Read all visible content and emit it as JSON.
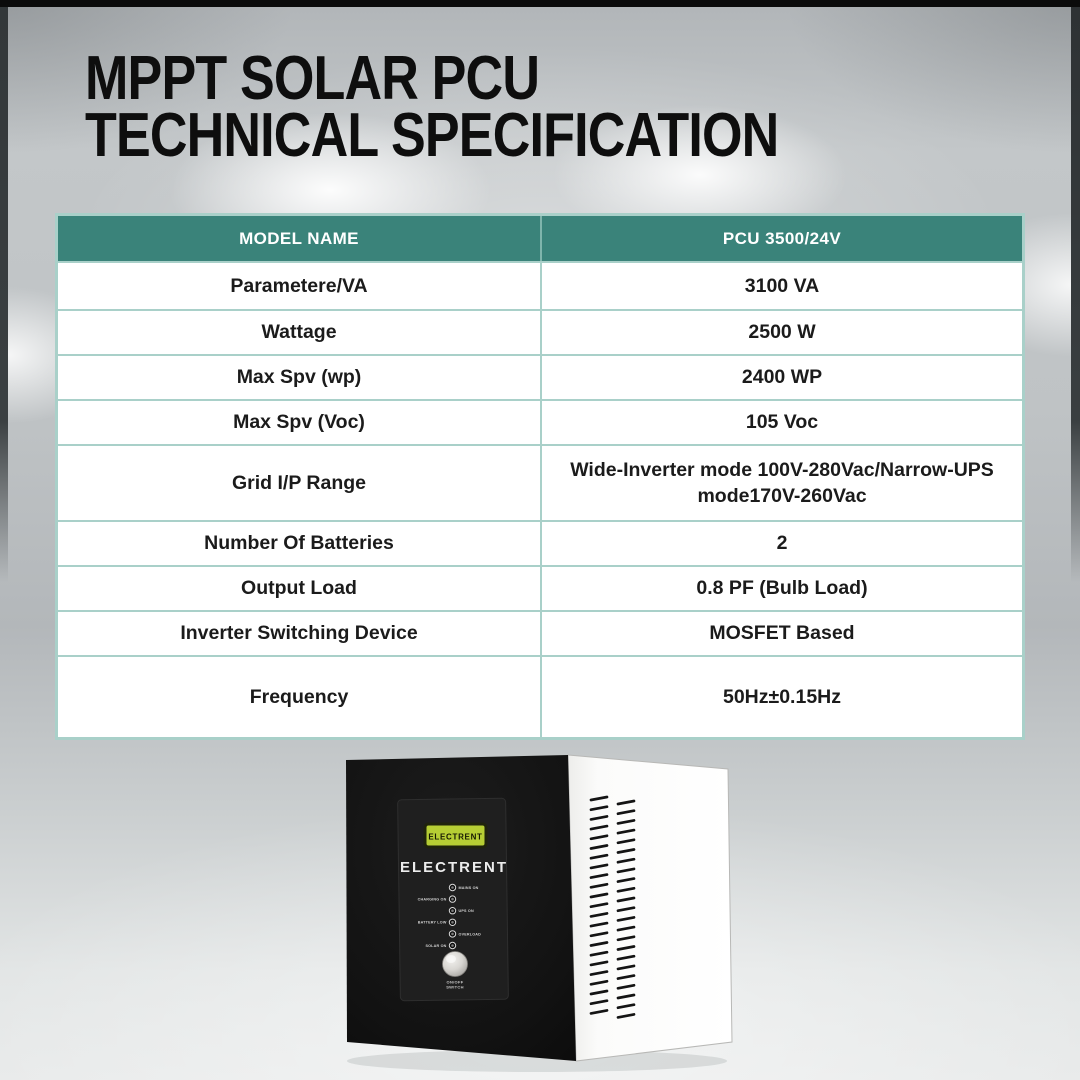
{
  "header": {
    "title_line1": "MPPT SOLAR PCU",
    "title_line2": "TECHNICAL SPECIFICATION"
  },
  "spec_table": {
    "columns": {
      "model": "MODEL NAME",
      "value": "PCU 3500/24V"
    },
    "rows": [
      {
        "label": "Parametere/VA",
        "value": "3100 VA"
      },
      {
        "label": "Wattage",
        "value": "2500 W"
      },
      {
        "label": "Max Spv (wp)",
        "value": "2400 WP"
      },
      {
        "label": "Max Spv (Voc)",
        "value": "105 Voc"
      },
      {
        "label": "Grid I/P Range",
        "value": "Wide-Inverter mode 100V-280Vac/Narrow-UPS mode170V-260Vac"
      },
      {
        "label": "Number Of Batteries",
        "value": "2"
      },
      {
        "label": "Output Load",
        "value": "0.8 PF (Bulb Load)"
      },
      {
        "label": "Inverter Switching Device",
        "value": "MOSFET Based"
      },
      {
        "label": "Frequency",
        "value": "50Hz±0.15Hz"
      }
    ]
  },
  "product": {
    "lcd_text": "ELECTRENT",
    "brand_text": "ELECTRENT",
    "indicators": [
      {
        "side": "right",
        "label": "MAINS ON"
      },
      {
        "side": "left",
        "label": "CHARGING ON"
      },
      {
        "side": "right",
        "label": "UPS ON"
      },
      {
        "side": "left",
        "label": "BATTERY LOW"
      },
      {
        "side": "right",
        "label": "OVERLOAD"
      },
      {
        "side": "left",
        "label": "SOLAR ON"
      }
    ],
    "knob_label_line1": "ON/OFF",
    "knob_label_line2": "SWITCH"
  },
  "colors": {
    "header_teal": "#3A837A",
    "table_border": "#A9D0C9",
    "lcd_green": "#B6CE34",
    "title_text": "#0E0E0E"
  }
}
